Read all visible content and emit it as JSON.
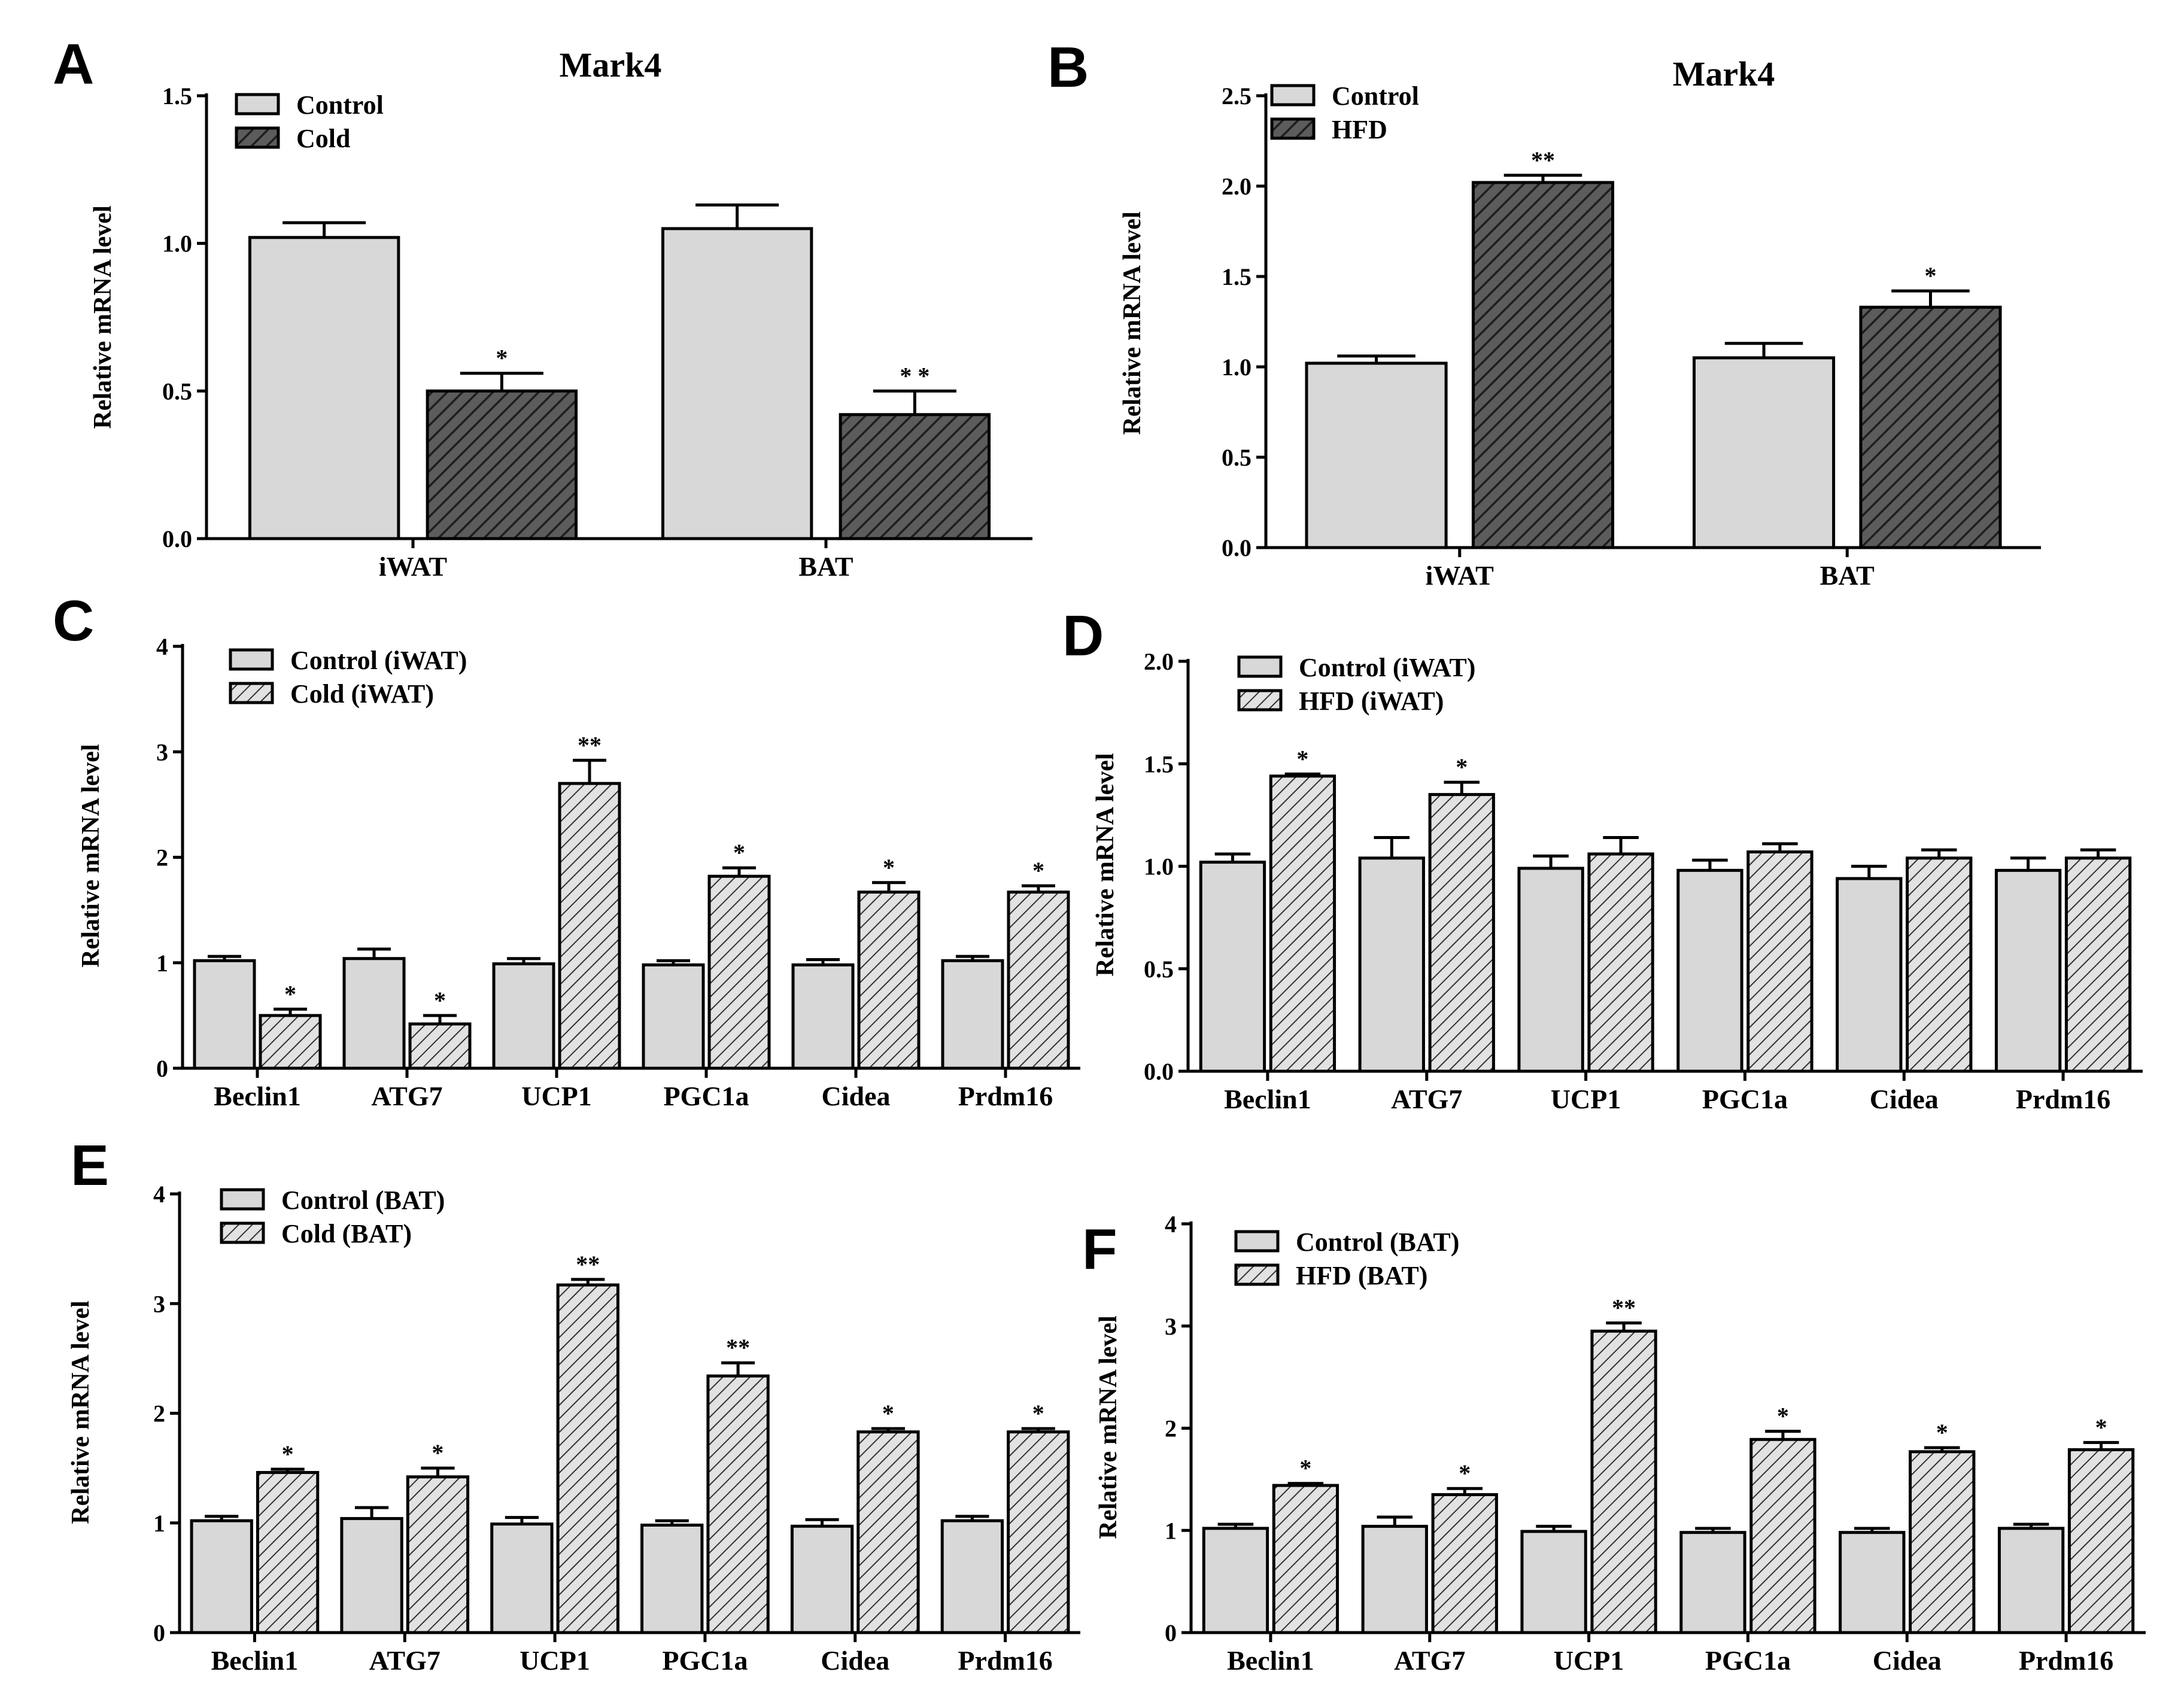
{
  "colors": {
    "control_fill": "#d8d8d8",
    "treat_fill_dark": "#595959",
    "treat_fill_light": "#d8d8d8",
    "hatch_dark": "#222222",
    "hatch_light": "#333333"
  },
  "chart_data": [
    {
      "id": "A",
      "panel_label": "A",
      "type": "bar",
      "title": "Mark4",
      "ylabel": "Relative mRNA level",
      "ylim": [
        0,
        1.5
      ],
      "yticks": [
        "0.0",
        "0.5",
        "1.0",
        "1.5"
      ],
      "categories": [
        "iWAT",
        "BAT"
      ],
      "series": [
        {
          "name": "Control",
          "values": [
            1.02,
            1.05
          ],
          "errors": [
            0.05,
            0.08
          ],
          "sig": [
            "",
            ""
          ]
        },
        {
          "name": "Cold",
          "values": [
            0.5,
            0.42
          ],
          "errors": [
            0.06,
            0.08
          ],
          "sig": [
            "*",
            "* *"
          ]
        }
      ],
      "legend": "top-left",
      "grid": false
    },
    {
      "id": "B",
      "panel_label": "B",
      "type": "bar",
      "title": "Mark4",
      "ylabel": "Relative mRNA level",
      "ylim": [
        0,
        2.5
      ],
      "yticks": [
        "0.0",
        "0.5",
        "1.0",
        "1.5",
        "2.0",
        "2.5"
      ],
      "categories": [
        "iWAT",
        "BAT"
      ],
      "series": [
        {
          "name": "Control",
          "values": [
            1.02,
            1.05
          ],
          "errors": [
            0.04,
            0.08
          ],
          "sig": [
            "",
            ""
          ]
        },
        {
          "name": "HFD",
          "values": [
            2.02,
            1.33
          ],
          "errors": [
            0.04,
            0.09
          ],
          "sig": [
            "**",
            "*"
          ]
        }
      ],
      "legend": "top-left",
      "grid": false
    },
    {
      "id": "C",
      "panel_label": "C",
      "type": "bar",
      "title": "",
      "ylabel": "Relative mRNA level",
      "ylim": [
        0,
        4
      ],
      "yticks": [
        "0",
        "1",
        "2",
        "3",
        "4"
      ],
      "categories": [
        "Beclin1",
        "ATG7",
        "UCP1",
        "PGC1a",
        "Cidea",
        "Prdm16"
      ],
      "series": [
        {
          "name": "Control (iWAT)",
          "values": [
            1.02,
            1.04,
            0.99,
            0.98,
            0.98,
            1.02
          ],
          "errors": [
            0.04,
            0.09,
            0.05,
            0.04,
            0.05,
            0.04
          ],
          "sig": [
            "",
            "",
            "",
            "",
            "",
            ""
          ]
        },
        {
          "name": "Cold (iWAT)",
          "values": [
            0.5,
            0.42,
            2.7,
            1.82,
            1.67,
            1.67
          ],
          "errors": [
            0.06,
            0.08,
            0.22,
            0.08,
            0.09,
            0.06
          ],
          "sig": [
            "*",
            "*",
            "**",
            "*",
            "*",
            "*"
          ]
        }
      ],
      "legend": "top-left",
      "grid": false
    },
    {
      "id": "D",
      "panel_label": "D",
      "type": "bar",
      "title": "",
      "ylabel": "Relative mRNA level",
      "ylim": [
        0,
        2.0
      ],
      "yticks": [
        "0.0",
        "0.5",
        "1.0",
        "1.5",
        "2.0"
      ],
      "categories": [
        "Beclin1",
        "ATG7",
        "UCP1",
        "PGC1a",
        "Cidea",
        "Prdm16"
      ],
      "series": [
        {
          "name": "Control (iWAT)",
          "values": [
            1.02,
            1.04,
            0.99,
            0.98,
            0.94,
            0.98
          ],
          "errors": [
            0.04,
            0.1,
            0.06,
            0.05,
            0.06,
            0.06
          ],
          "sig": [
            "",
            "",
            "",
            "",
            "",
            ""
          ]
        },
        {
          "name": "HFD (iWAT)",
          "values": [
            1.44,
            1.35,
            1.06,
            1.07,
            1.04,
            1.04
          ],
          "errors": [
            0.01,
            0.06,
            0.08,
            0.04,
            0.04,
            0.04
          ],
          "sig": [
            "*",
            "*",
            "",
            "",
            "",
            ""
          ]
        }
      ],
      "legend": "top-left",
      "grid": false
    },
    {
      "id": "E",
      "panel_label": "E",
      "type": "bar",
      "title": "",
      "ylabel": "Relative mRNA level",
      "ylim": [
        0,
        4
      ],
      "yticks": [
        "0",
        "1",
        "2",
        "3",
        "4"
      ],
      "categories": [
        "Beclin1",
        "ATG7",
        "UCP1",
        "PGC1a",
        "Cidea",
        "Prdm16"
      ],
      "series": [
        {
          "name": "Control (BAT)",
          "values": [
            1.02,
            1.04,
            0.99,
            0.98,
            0.97,
            1.02
          ],
          "errors": [
            0.04,
            0.1,
            0.06,
            0.04,
            0.06,
            0.04
          ],
          "sig": [
            "",
            "",
            "",
            "",
            "",
            ""
          ]
        },
        {
          "name": "Cold (BAT)",
          "values": [
            1.46,
            1.42,
            3.17,
            2.34,
            1.83,
            1.83
          ],
          "errors": [
            0.03,
            0.08,
            0.05,
            0.12,
            0.03,
            0.03
          ],
          "sig": [
            "*",
            "*",
            "**",
            "**",
            "*",
            "*"
          ]
        }
      ],
      "legend": "top-left",
      "grid": false
    },
    {
      "id": "F",
      "panel_label": "F",
      "type": "bar",
      "title": "",
      "ylabel": "Relative mRNA level",
      "ylim": [
        0,
        4
      ],
      "yticks": [
        "0",
        "1",
        "2",
        "3",
        "4"
      ],
      "categories": [
        "Beclin1",
        "ATG7",
        "UCP1",
        "PGC1a",
        "Cidea",
        "Prdm16"
      ],
      "series": [
        {
          "name": "Control (BAT)",
          "values": [
            1.02,
            1.04,
            0.99,
            0.98,
            0.98,
            1.02
          ],
          "errors": [
            0.04,
            0.09,
            0.05,
            0.04,
            0.04,
            0.04
          ],
          "sig": [
            "",
            "",
            "",
            "",
            "",
            ""
          ]
        },
        {
          "name": "HFD (BAT)",
          "values": [
            1.44,
            1.35,
            2.95,
            1.89,
            1.77,
            1.79
          ],
          "errors": [
            0.02,
            0.06,
            0.08,
            0.08,
            0.04,
            0.07
          ],
          "sig": [
            "*",
            "*",
            "**",
            "*",
            "*",
            "*"
          ]
        }
      ],
      "legend": "top-left",
      "grid": false
    }
  ]
}
